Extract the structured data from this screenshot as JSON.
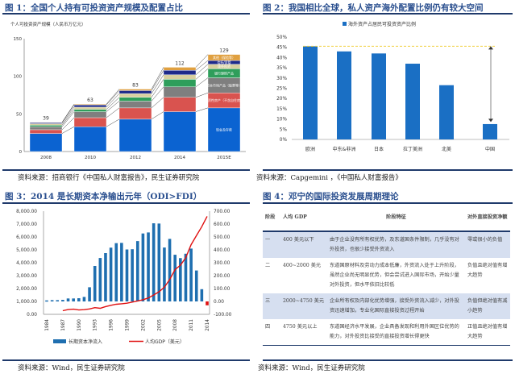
{
  "fig1": {
    "title": "图 1：全国个人持有可投资资产规模及配置占比",
    "source": "资料来源：招商银行《中国私人财富报告》，民生证券研究院"
  },
  "fig2": {
    "title": "图 2：我国相比全球，私人资产海外配置比例仍有较大空间",
    "source": "资料来源：Capgemini ，《中国私人财富报告》"
  },
  "fig3": {
    "title": "图 3：2014 是长期资本净输出元年（ODI>FDI）",
    "source": "资料来源：Wind，民生证券研究院"
  },
  "fig4": {
    "title": "图 4：邓宁的国际投资发展周期理论",
    "source": "资料来源：Wind，民生证券研究院",
    "headers": [
      "阶段",
      "人均 GDP",
      "阶段特征",
      "对外直接投资净额"
    ],
    "rows": [
      [
        "一",
        "400 美元以下",
        "由于企业没有所有权优势，及东道国条件限制，几乎没有对外投资，也很少接受外资流入",
        "零或很小的负值"
      ],
      [
        "二",
        "400~2000 美元",
        "东道国原材料及劳动力成本低廉，外资流入处于上升阶段，虽然企业尚无明显优势，但会尝试进入国际市场，开始少量对外投资，但水平依旧比较低",
        "负值且绝对值有增大趋势"
      ],
      [
        "三",
        "2000~4750 美元",
        "企业所有权及内部化优势增强，接受外资流入减少，对外投资迅速增加，专业化国际直接投资过程开始",
        "负值但绝对值有减小趋势"
      ],
      [
        "四",
        "4750 美元以上",
        "东道国经济水平发展，企业具备发现和利用外国区位优势的能力，对外投资比接受的直接投资增长得更快",
        "正值且绝对值有增大趋势"
      ]
    ]
  },
  "chart_data": [
    {
      "type": "bar",
      "stacked": true,
      "ylabel": "个人可投资资产规模（人民币万亿元）",
      "categories": [
        "2008",
        "2010",
        "2012",
        "2014",
        "2015E"
      ],
      "totals": [
        39,
        63,
        83,
        112,
        129
      ],
      "ylim": [
        0,
        150
      ],
      "yticks": [
        "0",
        "50",
        "100",
        "150"
      ],
      "series": [
        {
          "name": "现金及存款",
          "color": "#0b63d1",
          "values": [
            24,
            33,
            43,
            53,
            58
          ]
        },
        {
          "name": "投资性房产（不含自住房）",
          "color": "#d9534f",
          "values": [
            5,
            12,
            15,
            19,
            20
          ]
        },
        {
          "name": "资本市场产品（股票等）",
          "color": "#7f7f7f",
          "values": [
            4,
            8,
            9,
            14,
            20
          ]
        },
        {
          "name": "银行理财产品",
          "color": "#2e9e5b",
          "values": [
            2,
            3,
            5,
            10,
            12
          ]
        },
        {
          "name": "境外投资",
          "color": "#d8cf9f",
          "values": [
            2,
            3,
            5,
            6,
            6
          ]
        },
        {
          "name": "信托/资管",
          "color": "#1e2a8a",
          "values": [
            1.5,
            3,
            4,
            6,
            5
          ]
        },
        {
          "name": "其他（保险等）",
          "color": "#e0a040",
          "values": [
            0.5,
            1,
            2,
            4,
            8
          ]
        }
      ]
    },
    {
      "type": "bar",
      "legend": "海外资产占居民可投资资产比例",
      "categories": [
        "欧洲",
        "中东&非洲",
        "日本",
        "拉丁美洲",
        "北美",
        "中国"
      ],
      "values": [
        45.5,
        43,
        42,
        37,
        26.5,
        7.5
      ],
      "unit": "%",
      "ylim": [
        0,
        50
      ],
      "yticks": [
        "0%",
        "5%",
        "10%",
        "15%",
        "20%",
        "25%",
        "30%",
        "35%",
        "40%",
        "45%",
        "50%"
      ],
      "reference_line": 45.5,
      "color": "#1a6fc4"
    },
    {
      "type": "bar+line",
      "x": [
        "1984",
        "1985",
        "1986",
        "1987",
        "1988",
        "1989",
        "1990",
        "1991",
        "1992",
        "1993",
        "1994",
        "1995",
        "1996",
        "1997",
        "1998",
        "1999",
        "2000",
        "2001",
        "2002",
        "2003",
        "2004",
        "2005",
        "2006",
        "2007",
        "2008",
        "2009",
        "2010",
        "2011",
        "2012",
        "2013",
        "2014"
      ],
      "xticks": [
        "1984",
        "1987",
        "1990",
        "1993",
        "1996",
        "1999",
        "2002",
        "2005",
        "2008",
        "2011",
        "2014"
      ],
      "left_yticks": [
        "0.00",
        "1,000.00",
        "2,000.00",
        "3,000.00",
        "4,000.00",
        "5,000.00",
        "6,000.00",
        "7,000.00",
        "8,000.00"
      ],
      "right_yticks": [
        "-100.00",
        "0.00",
        "100.00",
        "200.00",
        "300.00",
        "400.00",
        "500.00",
        "600.00",
        "700.00"
      ],
      "left_ylim": [
        0,
        8000
      ],
      "right_ylim": [
        -100,
        700
      ],
      "series": [
        {
          "name": "长期资本净流入",
          "axis": "right",
          "type": "bar",
          "color": "#1f6fb0",
          "negative_color": "#e01010",
          "values": [
            8,
            10,
            10,
            12,
            23,
            23,
            25,
            35,
            110,
            275,
            337,
            375,
            417,
            452,
            454,
            403,
            405,
            468,
            527,
            535,
            606,
            604,
            418,
            485,
            362,
            336,
            370,
            410,
            240,
            95,
            -30
          ]
        },
        {
          "name": "人均GDP（美元）",
          "axis": "left",
          "type": "line",
          "color": "#e01010",
          "values": [
            null,
            null,
            null,
            280,
            370,
            400,
            340,
            360,
            420,
            520,
            470,
            600,
            700,
            780,
            820,
            860,
            950,
            1040,
            1130,
            1270,
            1500,
            1750,
            2100,
            2700,
            3470,
            3800,
            4400,
            5400,
            6100,
            6800,
            7600
          ]
        }
      ]
    }
  ]
}
